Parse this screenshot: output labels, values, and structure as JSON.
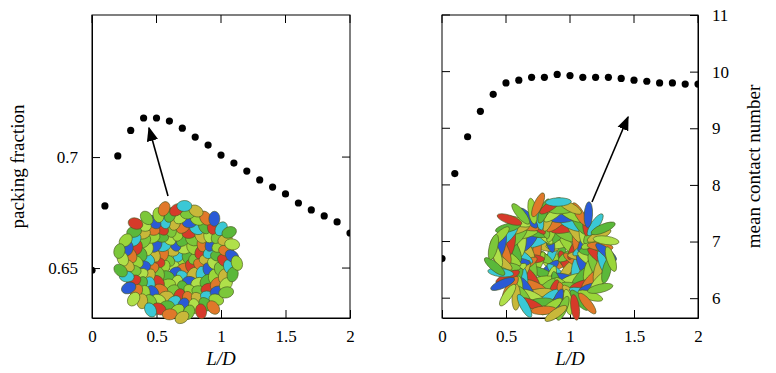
{
  "chart_data": [
    {
      "type": "scatter",
      "x_label": "L/D",
      "y_label": "packing fraction",
      "color": "#000000",
      "marker": "circle",
      "x": [
        0,
        0.1,
        0.2,
        0.3,
        0.4,
        0.5,
        0.6,
        0.7,
        0.8,
        0.9,
        1.0,
        1.1,
        1.2,
        1.3,
        1.4,
        1.5,
        1.6,
        1.7,
        1.8,
        1.9,
        2.0
      ],
      "values": [
        0.649,
        0.678,
        0.7005,
        0.712,
        0.7176,
        0.7176,
        0.7162,
        0.713,
        0.709,
        0.7054,
        0.7009,
        0.6973,
        0.6937,
        0.6897,
        0.6865,
        0.6834,
        0.6793,
        0.6762,
        0.6735,
        0.6708,
        0.6658
      ],
      "xlim": [
        0,
        2
      ],
      "ylim": [
        0.6275,
        0.764
      ],
      "xticks": [
        0,
        0.5,
        1,
        1.5,
        2
      ],
      "yticks": [
        0.65,
        0.7
      ]
    },
    {
      "type": "scatter",
      "x_label": "L/D",
      "y_label": "mean contact number",
      "color": "#000000",
      "marker": "circle",
      "x": [
        0,
        0.1,
        0.2,
        0.3,
        0.4,
        0.5,
        0.6,
        0.7,
        0.8,
        0.9,
        1.0,
        1.1,
        1.2,
        1.3,
        1.4,
        1.5,
        1.6,
        1.7,
        1.8,
        1.9,
        2.0
      ],
      "values": [
        6.7,
        8.2,
        8.85,
        9.3,
        9.6,
        9.8,
        9.85,
        9.9,
        9.9,
        9.95,
        9.93,
        9.9,
        9.9,
        9.9,
        9.88,
        9.85,
        9.83,
        9.8,
        9.8,
        9.78,
        9.78
      ],
      "xlim": [
        0,
        2
      ],
      "ylim": [
        5.65,
        11
      ],
      "xticks": [
        0,
        0.5,
        1,
        1.5,
        2
      ],
      "yticks": [
        6,
        7,
        8,
        9,
        10,
        11
      ]
    }
  ]
}
